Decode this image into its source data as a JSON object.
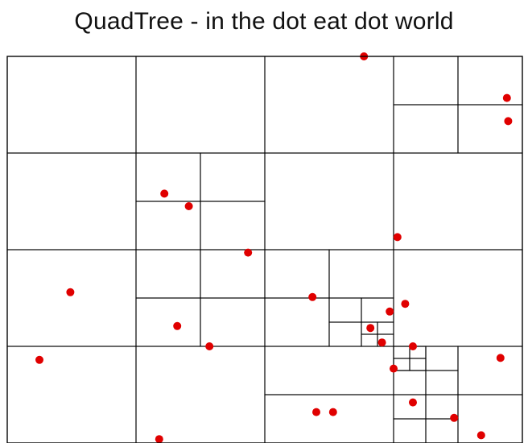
{
  "title": "QuadTree - in the dot eat dot world",
  "colors": {
    "line": "#000000",
    "dot": "#e00000",
    "background": "#ffffff"
  },
  "quadtree": {
    "cells": [
      [
        0,
        0,
        1,
        1
      ],
      [
        1,
        0,
        1,
        1
      ],
      [
        2,
        0,
        1,
        1
      ],
      [
        3,
        0,
        0.5,
        0.5
      ],
      [
        3.5,
        0,
        0.5,
        0.5
      ],
      [
        3,
        0.5,
        0.5,
        0.5
      ],
      [
        3.5,
        0.5,
        0.5,
        0.5
      ],
      [
        0,
        1,
        1,
        1
      ],
      [
        1,
        1,
        0.5,
        0.5
      ],
      [
        1.5,
        1,
        0.5,
        0.5
      ],
      [
        1,
        1.5,
        0.5,
        0.5
      ],
      [
        1.5,
        1.5,
        0.5,
        0.5
      ],
      [
        2,
        1,
        1,
        1
      ],
      [
        3,
        1,
        1,
        1
      ],
      [
        0,
        2,
        1,
        1
      ],
      [
        1,
        2,
        0.5,
        0.5
      ],
      [
        1.5,
        2,
        0.5,
        0.5
      ],
      [
        1,
        2.5,
        0.5,
        0.5
      ],
      [
        1.5,
        2.5,
        0.5,
        0.5
      ],
      [
        2,
        2,
        0.5,
        0.5
      ],
      [
        2.5,
        2,
        0.5,
        0.5
      ],
      [
        2,
        2.5,
        0.5,
        0.5
      ],
      [
        2.5,
        2.5,
        0.25,
        0.25
      ],
      [
        2.75,
        2.5,
        0.25,
        0.25
      ],
      [
        2.5,
        2.75,
        0.25,
        0.25
      ],
      [
        2.75,
        2.75,
        0.125,
        0.125
      ],
      [
        2.875,
        2.75,
        0.125,
        0.125
      ],
      [
        2.75,
        2.875,
        0.125,
        0.125
      ],
      [
        2.875,
        2.875,
        0.125,
        0.125
      ],
      [
        3,
        2,
        1,
        1
      ],
      [
        0,
        3,
        1,
        1
      ],
      [
        1,
        3,
        1,
        1
      ],
      [
        2,
        3,
        1,
        0.5
      ],
      [
        2,
        3.5,
        1,
        0.5
      ],
      [
        3,
        3,
        0.25,
        0.25
      ],
      [
        3.25,
        3,
        0.25,
        0.25
      ],
      [
        3,
        3.25,
        0.25,
        0.25
      ],
      [
        3.25,
        3.25,
        0.25,
        0.25
      ],
      [
        3.5,
        3,
        0.5,
        0.5
      ],
      [
        3,
        3.5,
        0.25,
        0.25
      ],
      [
        3.25,
        3.5,
        0.25,
        0.25
      ],
      [
        3,
        3.75,
        0.25,
        0.25
      ],
      [
        3.25,
        3.75,
        0.25,
        0.25
      ],
      [
        3.5,
        3.5,
        0.5,
        0.5
      ],
      [
        3.0,
        3.0,
        0.125,
        0.125
      ],
      [
        3.125,
        3.0,
        0.125,
        0.125
      ],
      [
        3.0,
        3.125,
        0.125,
        0.125
      ],
      [
        3.125,
        3.125,
        0.125,
        0.125
      ]
    ],
    "dots": [
      [
        2.77,
        0.0
      ],
      [
        3.88,
        0.43
      ],
      [
        3.89,
        0.67
      ],
      [
        1.22,
        1.42
      ],
      [
        1.41,
        1.55
      ],
      [
        1.87,
        2.03
      ],
      [
        3.03,
        1.87
      ],
      [
        0.49,
        2.44
      ],
      [
        2.37,
        2.49
      ],
      [
        3.09,
        2.56
      ],
      [
        2.97,
        2.64
      ],
      [
        1.32,
        2.79
      ],
      [
        2.82,
        2.81
      ],
      [
        2.91,
        2.96
      ],
      [
        1.57,
        3.0
      ],
      [
        3.15,
        3.0
      ],
      [
        3.0,
        3.23
      ],
      [
        3.83,
        3.12
      ],
      [
        0.25,
        3.14
      ],
      [
        3.15,
        3.58
      ],
      [
        2.4,
        3.68
      ],
      [
        2.53,
        3.68
      ],
      [
        3.47,
        3.74
      ],
      [
        3.68,
        3.92
      ],
      [
        1.18,
        3.96
      ]
    ]
  }
}
